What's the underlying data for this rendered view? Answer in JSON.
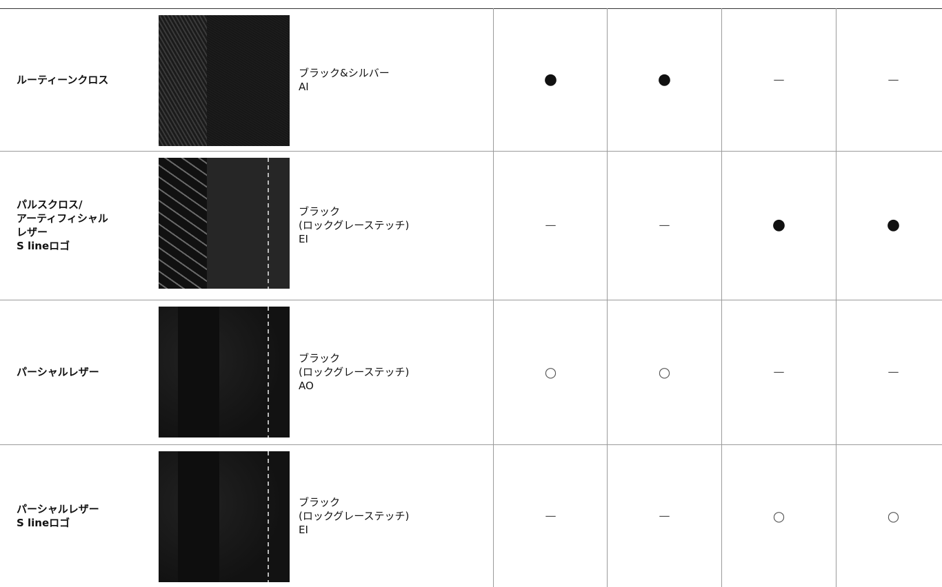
{
  "table": {
    "rows": [
      {
        "name": [
          "ルーティーンクロス"
        ],
        "color": [
          "ブラック&シルバー",
          "AI"
        ],
        "marks": [
          "●",
          "●",
          "—",
          "—"
        ]
      },
      {
        "name": [
          "パルスクロス/",
          "アーティフィシャル",
          "レザー",
          "S lineロゴ"
        ],
        "color": [
          "ブラック",
          "(ロックグレーステッチ)",
          "EI"
        ],
        "marks": [
          "—",
          "—",
          "●",
          "●"
        ]
      },
      {
        "name": [
          "パーシャルレザー"
        ],
        "color": [
          "ブラック",
          "(ロックグレーステッチ)",
          "AO"
        ],
        "marks": [
          "○",
          "○",
          "—",
          "—"
        ]
      },
      {
        "name": [
          "パーシャルレザー",
          "S lineロゴ"
        ],
        "color": [
          "ブラック",
          "(ロックグレーステッチ)",
          "EI"
        ],
        "marks": [
          "—",
          "—",
          "○",
          "○"
        ]
      }
    ]
  }
}
